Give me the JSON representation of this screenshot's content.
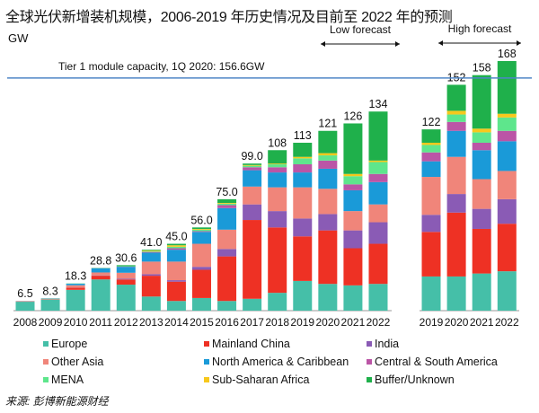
{
  "chart_data": {
    "type": "bar",
    "stacked": true,
    "title": "全球光伏新增装机规模，2006-2019 年历史情况及目前至 2022 年的预测",
    "ylabel": "GW",
    "ylim": [
      0,
      175
    ],
    "grid": false,
    "legend_position": "bottom",
    "groups": [
      {
        "label": "",
        "categories": [
          "2008",
          "2009",
          "2010",
          "2011",
          "2012",
          "2013",
          "2014",
          "2015",
          "2016",
          "2017",
          "2018",
          "2019",
          "2020",
          "2021",
          "2022"
        ]
      },
      {
        "label": "High forecast",
        "categories": [
          "2019",
          "2020",
          "2021",
          "2022"
        ]
      }
    ],
    "annotations": {
      "low_forecast": "Low forecast",
      "high_forecast": "High forecast",
      "reference_line": {
        "label": "Tier 1 module capacity, 1Q 2020: 156.6GW",
        "value": 156.6
      }
    },
    "totals": [
      "6.5",
      "8.3",
      "18.3",
      "28.8",
      "30.6",
      "41.0",
      "45.0",
      "56.0",
      "75.0",
      "99.0",
      "108",
      "113",
      "121",
      "126",
      "134",
      "122",
      "152",
      "158",
      "168"
    ],
    "series": [
      {
        "name": "Europe",
        "color": "#45bfa8",
        "values": [
          6,
          7.5,
          14,
          21,
          17.5,
          9.5,
          6.5,
          8.5,
          6.5,
          8,
          12,
          20,
          18,
          17,
          18,
          23,
          23,
          25,
          26.5
        ]
      },
      {
        "name": "Mainland China",
        "color": "#ee3124",
        "values": [
          0.2,
          0.2,
          1.5,
          2.5,
          3.5,
          14,
          13,
          19,
          30,
          53,
          44,
          30,
          36,
          25,
          27,
          30,
          43,
          30,
          32
        ]
      },
      {
        "name": "India",
        "color": "#8a5bb5",
        "values": [
          0,
          0,
          0.1,
          0.2,
          0.5,
          1,
          1,
          2,
          5,
          10.5,
          11,
          12,
          11,
          12,
          14.5,
          11.5,
          12.5,
          13.5,
          16.5
        ]
      },
      {
        "name": "Other Asia",
        "color": "#f0857a",
        "values": [
          0.2,
          0.3,
          1.5,
          2,
          4,
          8.5,
          12.5,
          15.5,
          13,
          12,
          16,
          21,
          17,
          13,
          12,
          25.5,
          25,
          20,
          19
        ]
      },
      {
        "name": "North America & Caribbean",
        "color": "#1a9ad8",
        "values": [
          0.1,
          0.2,
          1.0,
          2.8,
          4,
          6,
          8,
          8,
          14.5,
          11,
          10,
          10,
          13.5,
          14,
          15,
          10.5,
          17.5,
          19.5,
          20
        ]
      },
      {
        "name": "Central & South America",
        "color": "#bb55a6",
        "values": [
          0,
          0,
          0,
          0.1,
          0.2,
          0.5,
          1,
          0.5,
          2,
          2,
          3.5,
          5.5,
          5.5,
          4,
          5.5,
          6,
          6,
          5,
          7
        ]
      },
      {
        "name": "MENA",
        "color": "#5ee68c",
        "values": [
          0,
          0,
          0.1,
          0.1,
          0.2,
          0.5,
          1,
          1,
          1,
          1,
          2,
          4,
          3.5,
          5.5,
          8,
          5,
          5,
          7,
          9
        ]
      },
      {
        "name": "Sub-Saharan Africa",
        "color": "#f7c81c",
        "values": [
          0,
          0,
          0,
          0,
          0,
          0.5,
          1,
          0.5,
          0.5,
          0.5,
          0.5,
          1,
          1.5,
          1.5,
          1,
          1.5,
          2.5,
          2.5,
          2.5
        ]
      },
      {
        "name": "Buffer/Unknown",
        "color": "#1fb04b",
        "values": [
          0,
          0.1,
          0.1,
          0.1,
          0.7,
          0.5,
          1,
          1,
          2.5,
          1,
          9,
          9.5,
          15,
          34,
          33,
          9,
          17.5,
          36,
          35.5
        ]
      }
    ],
    "reference_line_color": "#4f86c6"
  },
  "source": "来源: 彭博新能源财经"
}
